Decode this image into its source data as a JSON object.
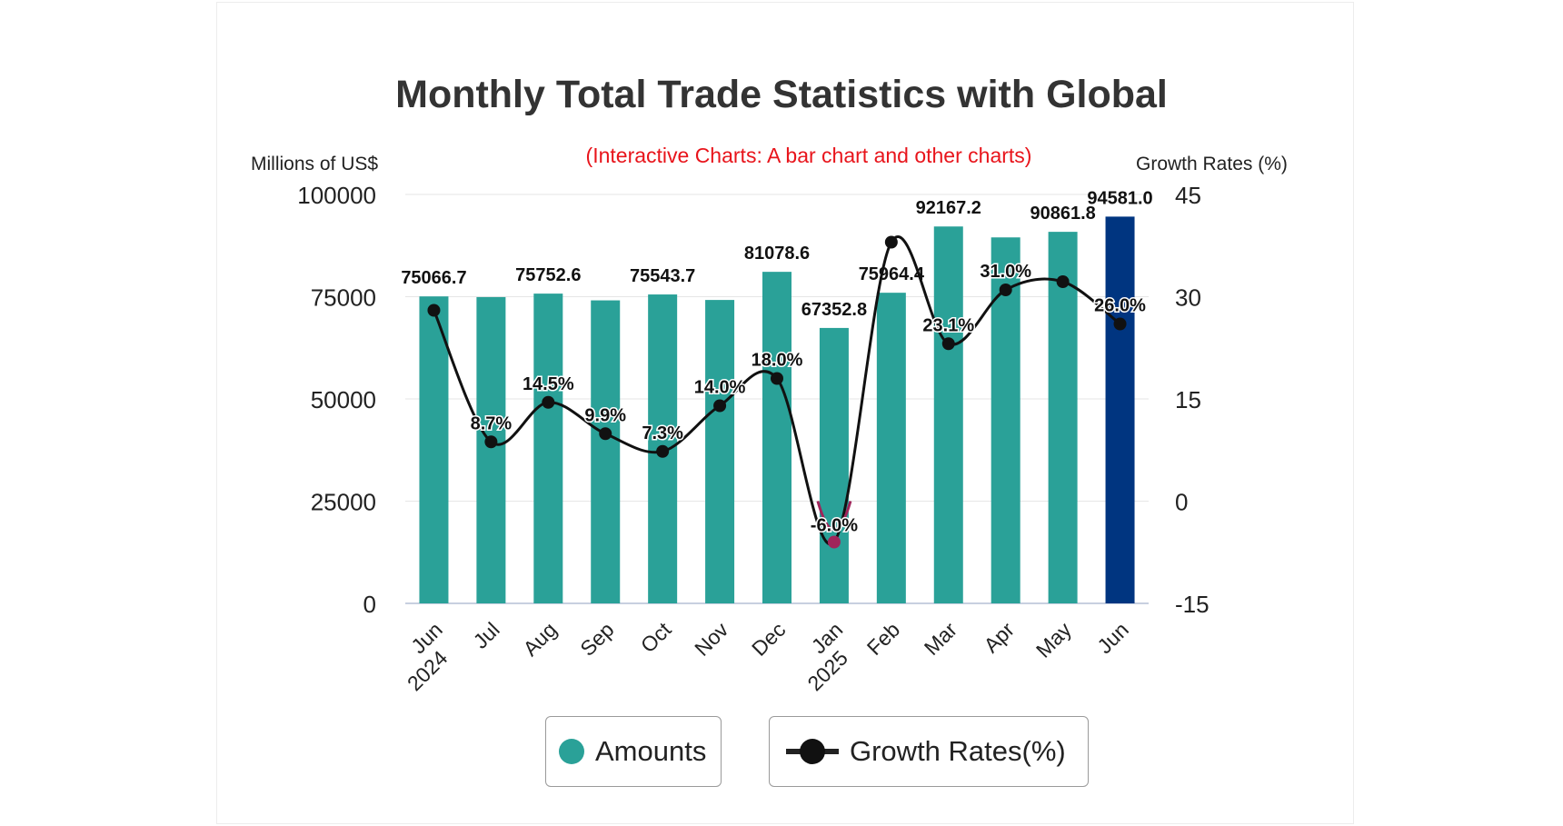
{
  "chart_data": {
    "type": "bar",
    "title": "Monthly Total Trade Statistics with Global",
    "subtitle": "(Interactive Charts: A bar chart and other charts)",
    "ylabel_left": "Millions of US$",
    "ylabel_right": "Growth Rates (%)",
    "ylim_left": [
      0,
      100000
    ],
    "ylim_right": [
      -15,
      45
    ],
    "yticks_left": [
      "100000",
      "75000",
      "50000",
      "25000",
      "0"
    ],
    "yticks_right": [
      "45",
      "30",
      "15",
      "0",
      "-15"
    ],
    "yticks_left_values": [
      100000,
      75000,
      50000,
      25000,
      0
    ],
    "yticks_right_values": [
      45,
      30,
      15,
      0,
      -15
    ],
    "categories": [
      [
        "Jun",
        "2024"
      ],
      [
        "Jul"
      ],
      [
        "Aug"
      ],
      [
        "Sep"
      ],
      [
        "Oct"
      ],
      [
        "Nov"
      ],
      [
        "Dec"
      ],
      [
        "Jan",
        "2025"
      ],
      [
        "Feb"
      ],
      [
        "Mar"
      ],
      [
        "Apr"
      ],
      [
        "May"
      ],
      [
        "Jun"
      ]
    ],
    "series": [
      {
        "name": "Amounts",
        "type": "bar",
        "axis": "left",
        "values": [
          75066.7,
          74900,
          75752.6,
          74100,
          75543.7,
          74200,
          81078.6,
          67352.8,
          75964.4,
          92167.2,
          89500,
          90861.8,
          94581.0
        ],
        "labels": [
          "75066.7",
          "",
          "75752.6",
          "",
          "75543.7",
          "",
          "81078.6",
          "67352.8",
          "75964.4",
          "92167.2",
          "",
          "90861.8",
          "94581.0"
        ],
        "colors": [
          "#2aa198",
          "#2aa198",
          "#2aa198",
          "#2aa198",
          "#2aa198",
          "#2aa198",
          "#2aa198",
          "#2aa198",
          "#2aa198",
          "#2aa198",
          "#2aa198",
          "#2aa198",
          "#003580"
        ]
      },
      {
        "name": "Growth Rates(%)",
        "type": "line",
        "axis": "right",
        "values": [
          28.0,
          8.7,
          14.5,
          9.9,
          7.3,
          14.0,
          18.0,
          -6.0,
          38.0,
          23.1,
          31.0,
          32.2,
          26.0
        ],
        "labels": [
          "",
          "8.7%",
          "14.5%",
          "9.9%",
          "7.3%",
          "14.0%",
          "18.0%",
          "-6.0%",
          "",
          "23.1%",
          "31.0%",
          "",
          "26.0%"
        ]
      }
    ]
  },
  "colors": {
    "bar": "#2aa198",
    "bar_highlight": "#003580",
    "line": "#111111",
    "negative": "#a0245a",
    "subtitle": "#e8141b",
    "grid": "#e6e6e6"
  },
  "legend": {
    "amounts_label": "Amounts",
    "growth_label": "Growth Rates(%)"
  }
}
